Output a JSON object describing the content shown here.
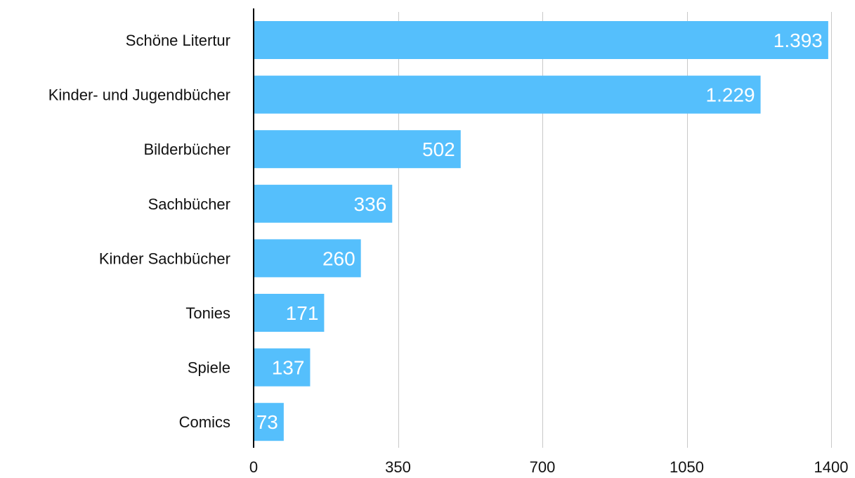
{
  "chart_data": {
    "type": "bar",
    "orientation": "horizontal",
    "categories": [
      "Schöne Litertur",
      "Kinder- und Jugendbücher",
      "Bilderbücher",
      "Sachbücher",
      "Kinder Sachbücher",
      "Tonies",
      "Spiele",
      "Comics"
    ],
    "values": [
      1393,
      1229,
      502,
      336,
      260,
      171,
      137,
      73
    ],
    "value_labels": [
      "1.393",
      "1.229",
      "502",
      "336",
      "260",
      "171",
      "137",
      "73"
    ],
    "title": "",
    "xlabel": "",
    "ylabel": "",
    "xlim": [
      0,
      1400
    ],
    "x_ticks": [
      0,
      350,
      700,
      1050,
      1400
    ],
    "x_tick_labels": [
      "0",
      "350",
      "700",
      "1050",
      "1400"
    ],
    "grid": "vertical",
    "legend": "none",
    "colors": {
      "bar": "#55BFFC",
      "value_label": "#FFFFFF",
      "gridline": "#C8C8C8",
      "axis": "#000000",
      "text": "#111111"
    }
  }
}
